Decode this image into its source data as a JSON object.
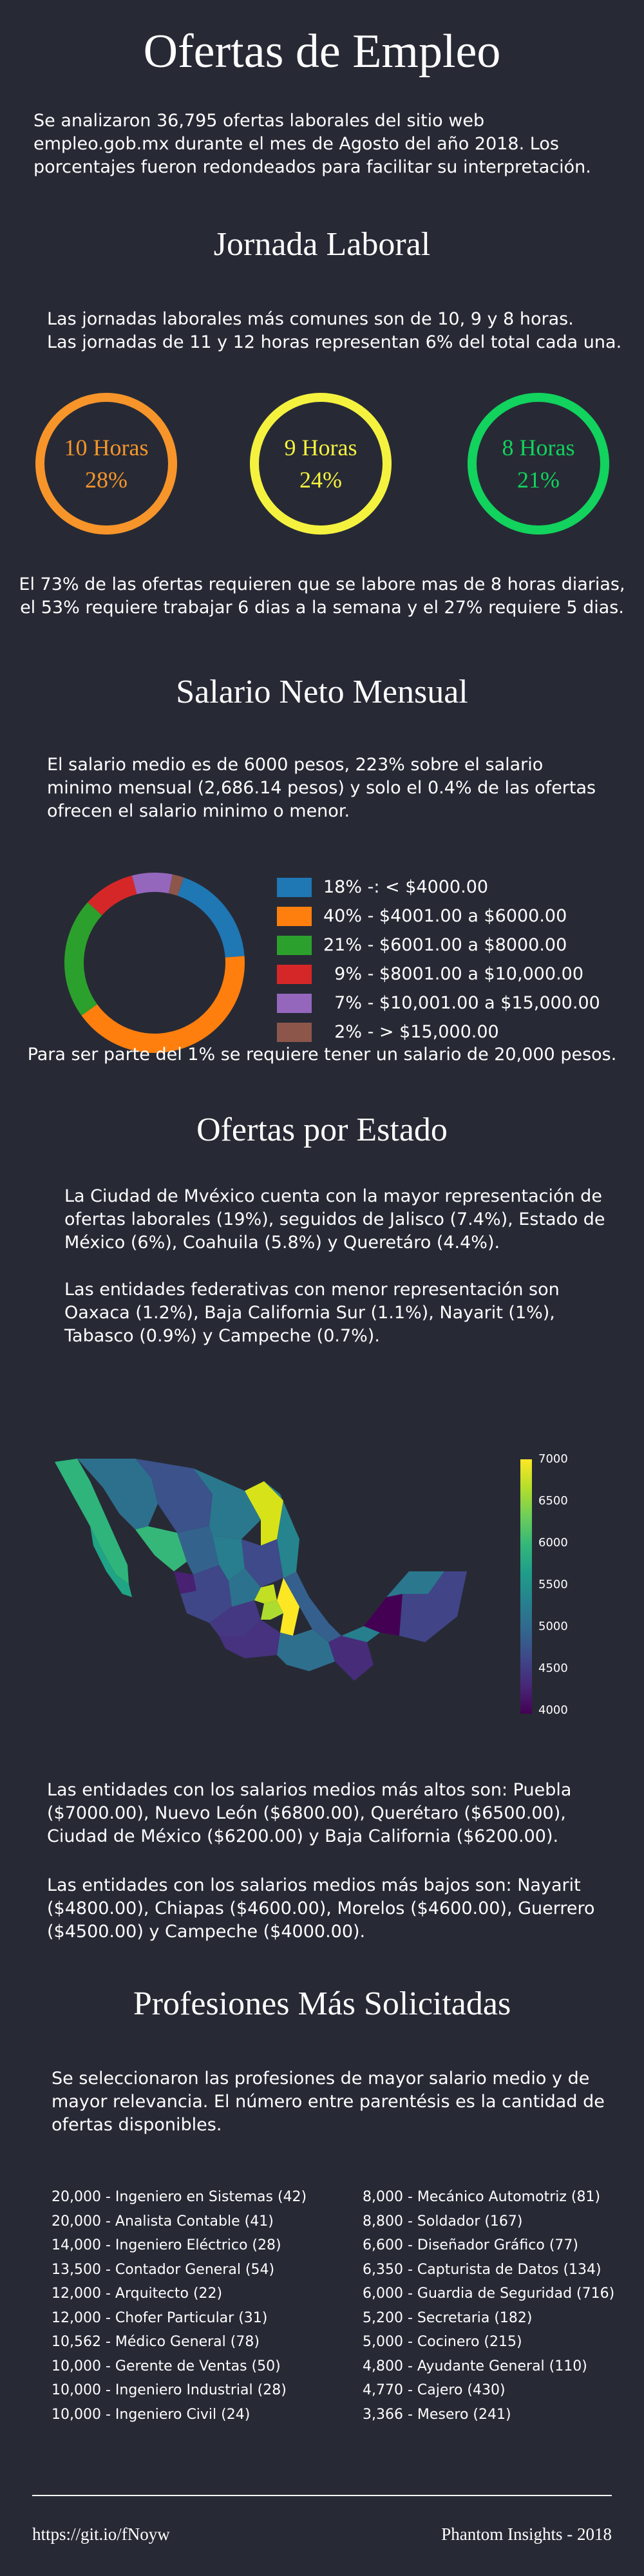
{
  "header": {
    "title": "Ofertas de Empleo",
    "intro": "Se analizaron 36,795 ofertas laborales del sitio web empleo.gob.mx durante el mes de Agosto del año 2018. Los porcentajes fueron redondeados para facilitar su interpretación."
  },
  "jornada": {
    "title": "Jornada Laboral",
    "intro_1": "Las jornadas laborales más comunes son de 10, 9 y 8 horas.",
    "intro_2": "Las jornadas de 11 y 12 horas representan 6% del total cada una.",
    "rings": [
      {
        "label": "10 Horas",
        "pct": "28%",
        "color": "#f7952a"
      },
      {
        "label": "9 Horas",
        "pct": "24%",
        "color": "#f5f23f"
      },
      {
        "label": "8 Horas",
        "pct": "21%",
        "color": "#11d35d"
      }
    ],
    "note_1": "El 73% de las ofertas requieren que se labore mas de 8 horas diarias,",
    "note_2": "el 53% requiere trabajar 6 dias a la semana y el 27% requiere 5 dias."
  },
  "salario": {
    "title": "Salario Neto Mensual",
    "intro": "El salario medio es de 6000 pesos, 223% sobre el salario minimo mensual (2,686.14 pesos) y solo el 0.4% de las ofertas ofrecen el salario minimo o menor.",
    "note": "Para ser parte del 1% se requiere tener un salario de 20,000 pesos."
  },
  "chart_data": [
    {
      "type": "pie",
      "labels": [
        "< $4000.00",
        "$4001.00 a $6000.00",
        "$6001.00 a $8000.00",
        "$8001.00 a $10,000.00",
        "$10,001.00 a $15,000.00",
        "> $15,000.00"
      ],
      "legend": [
        "18% -: < $4000.00",
        "40% - $4001.00 a $6000.00",
        "21% - $6001.00 a $8000.00",
        "  9% - $8001.00 a $10,000.00",
        "  7% - $10,001.00 a $15,000.00",
        "  2% - > $15,000.00"
      ],
      "values": [
        18,
        40,
        21,
        9,
        7,
        2
      ],
      "colors": [
        "#1f77b4",
        "#ff7f0e",
        "#2ca02c",
        "#d62728",
        "#9467bd",
        "#8c564b"
      ],
      "legend_position": "right"
    },
    {
      "type": "heatmap",
      "colorbar_ticks": [
        "7000",
        "6500",
        "6000",
        "5500",
        "5000",
        "4500",
        "4000"
      ],
      "colorbar_range": [
        4000,
        7000
      ],
      "colormap": "viridis"
    }
  ],
  "estado": {
    "title": "Ofertas por Estado",
    "para_1": "La Ciudad de Mvéxico cuenta con la mayor representación de ofertas laborales (19%), seguidos de Jalisco (7.4%), Estado de México (6%), Coahuila (5.8%) y Queretáro (4.4%).",
    "para_2": "Las entidades federativas con menor representación son Oaxaca (1.2%), Baja California Sur (1.1%), Nayarit (1%), Tabasco (0.9%) y Campeche (0.7%).",
    "high": "Las entidades con los salarios medios más altos son: Puebla ($7000.00), Nuevo León ($6800.00), Querétaro ($6500.00), Ciudad de México ($6200.00) y Baja California ($6200.00).",
    "low": "Las entidades con los salarios medios más bajos son: Nayarit ($4800.00), Chiapas ($4600.00), Morelos ($4600.00), Guerrero ($4500.00) y Campeche ($4000.00)."
  },
  "profesiones": {
    "title": "Profesiones Más Solicitadas",
    "intro": "Se seleccionaron las profesiones de mayor salario medio y de mayor relevancia. El número entre parentésis es la cantidad de ofertas disponibles.",
    "left": [
      "20,000 - Ingeniero en Sistemas (42)",
      "20,000 - Analista Contable (41)",
      "14,000 - Ingeniero Eléctrico (28)",
      "13,500 - Contador General (54)",
      "12,000 - Arquitecto (22)",
      "12,000 - Chofer Particular (31)",
      "10,562 - Médico General (78)",
      "10,000 - Gerente de Ventas (50)",
      "10,000 - Ingeniero Industrial (28)",
      "10,000 - Ingeniero Civil (24)"
    ],
    "right": [
      "8,000 - Mecánico Automotriz (81)",
      "8,800 - Soldador (167)",
      "6,600 - Diseñador Gráfico (77)",
      "6,350 - Capturista de Datos (134)",
      "6,000 - Guardia de Seguridad (716)",
      "5,200 - Secretaria (182)",
      "5,000 - Cocinero (215)",
      "4,800 - Ayudante General (110)",
      "4,770 - Cajero (430)",
      "3,366 - Mesero (241)"
    ]
  },
  "footer": {
    "link": "https://git.io/fNoyw",
    "credit": "Phantom Insights - 2018"
  }
}
